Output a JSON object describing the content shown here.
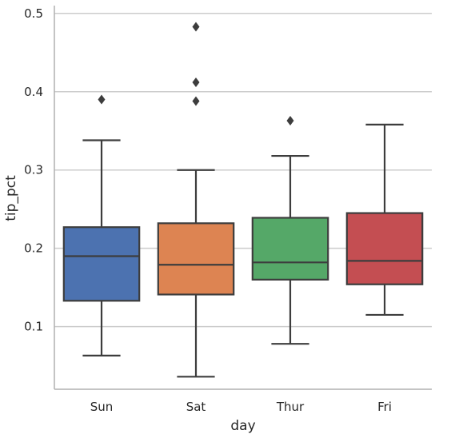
{
  "chart_data": {
    "type": "box",
    "xlabel": "day",
    "ylabel": "tip_pct",
    "ylim": [
      0.02,
      0.51
    ],
    "yticks": [
      0.1,
      0.2,
      0.3,
      0.4,
      0.5
    ],
    "ytick_labels": [
      "0.1",
      "0.2",
      "0.3",
      "0.4",
      "0.5"
    ],
    "grid": "horizontal",
    "categories": [
      "Sun",
      "Sat",
      "Thur",
      "Fri"
    ],
    "boxes": [
      {
        "category": "Sun",
        "whisker_low": 0.063,
        "q1": 0.133,
        "median": 0.19,
        "q3": 0.227,
        "whisker_high": 0.338,
        "outliers": [
          0.39
        ],
        "color": "#4c72b0"
      },
      {
        "category": "Sat",
        "whisker_low": 0.036,
        "q1": 0.141,
        "median": 0.179,
        "q3": 0.232,
        "whisker_high": 0.3,
        "outliers": [
          0.388,
          0.412,
          0.483
        ],
        "color": "#dd8452"
      },
      {
        "category": "Thur",
        "whisker_low": 0.078,
        "q1": 0.16,
        "median": 0.182,
        "q3": 0.239,
        "whisker_high": 0.318,
        "outliers": [
          0.363
        ],
        "color": "#55a868"
      },
      {
        "category": "Fri",
        "whisker_low": 0.115,
        "q1": 0.154,
        "median": 0.184,
        "q3": 0.245,
        "whisker_high": 0.358,
        "outliers": [],
        "color": "#c44e52"
      }
    ],
    "line_color": "#3d3d3d",
    "grid_color": "#cccccc",
    "axis_color": "#b0b0b0"
  }
}
